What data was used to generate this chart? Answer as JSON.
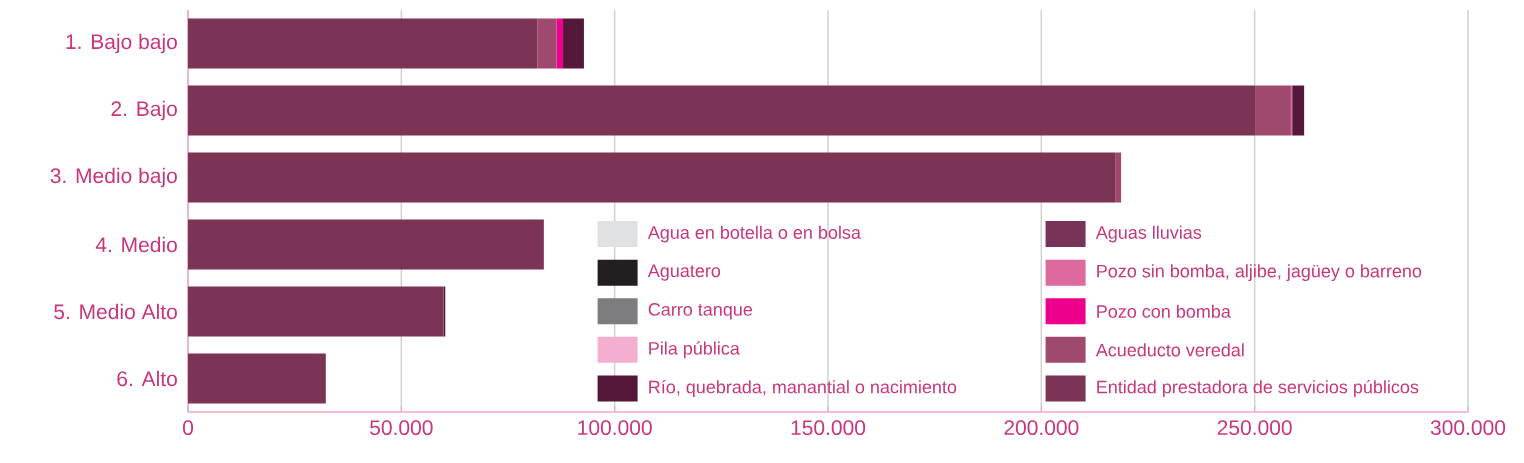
{
  "chart_data": {
    "type": "bar",
    "orientation": "horizontal",
    "stacked": true,
    "categories": [
      "1. Bajo bajo",
      "2. Bajo",
      "3. Medio bajo",
      "4. Medio",
      "5. Medio Alto",
      "6. Alto"
    ],
    "series": [
      {
        "name": "Entidad prestadora de servicios públicos",
        "color": "#7b3356",
        "values": [
          81900,
          250100,
          217300,
          83400,
          59900,
          32300
        ]
      },
      {
        "name": "Acueducto veredal",
        "color": "#a0496f",
        "values": [
          4500,
          8400,
          1400,
          0,
          0,
          0
        ]
      },
      {
        "name": "Pozo con bomba",
        "color": "#ec008c",
        "values": [
          1500,
          0,
          0,
          0,
          0,
          0
        ]
      },
      {
        "name": "Pozo sin bomba, aljibe, jagüey o barreno",
        "color": "#dc6a9e",
        "values": [
          0,
          300,
          0,
          0,
          0,
          0
        ]
      },
      {
        "name": "Aguas lluvias",
        "color": "#7a3358",
        "values": [
          0,
          0,
          0,
          0,
          0,
          0
        ]
      },
      {
        "name": "Río, quebrada, manantial o nacimiento",
        "color": "#55183b",
        "values": [
          4900,
          2800,
          0,
          0,
          400,
          0
        ]
      },
      {
        "name": "Pila pública",
        "color": "#f4afd0",
        "values": [
          0,
          0,
          0,
          0,
          0,
          0
        ]
      },
      {
        "name": "Carro tanque",
        "color": "#7d7d80",
        "values": [
          0,
          0,
          0,
          0,
          0,
          0
        ]
      },
      {
        "name": "Aguatero",
        "color": "#231f20",
        "values": [
          0,
          0,
          0,
          0,
          0,
          0
        ]
      },
      {
        "name": "Agua en botella o en bolsa",
        "color": "#e0e1e3",
        "values": [
          0,
          0,
          0,
          0,
          0,
          0
        ]
      }
    ],
    "xlim": [
      0,
      300000
    ],
    "xticks": [
      0,
      {
        "value": 50000,
        "label": "50.000"
      },
      {
        "value": 100000,
        "label": "100.000"
      },
      {
        "value": 150000,
        "label": "150.000"
      },
      {
        "value": 200000,
        "label": "200.000"
      },
      {
        "value": 250000,
        "label": "250.000"
      },
      {
        "value": 300000,
        "label": "300.000"
      }
    ],
    "grid": "x",
    "legend": "bottom right"
  }
}
